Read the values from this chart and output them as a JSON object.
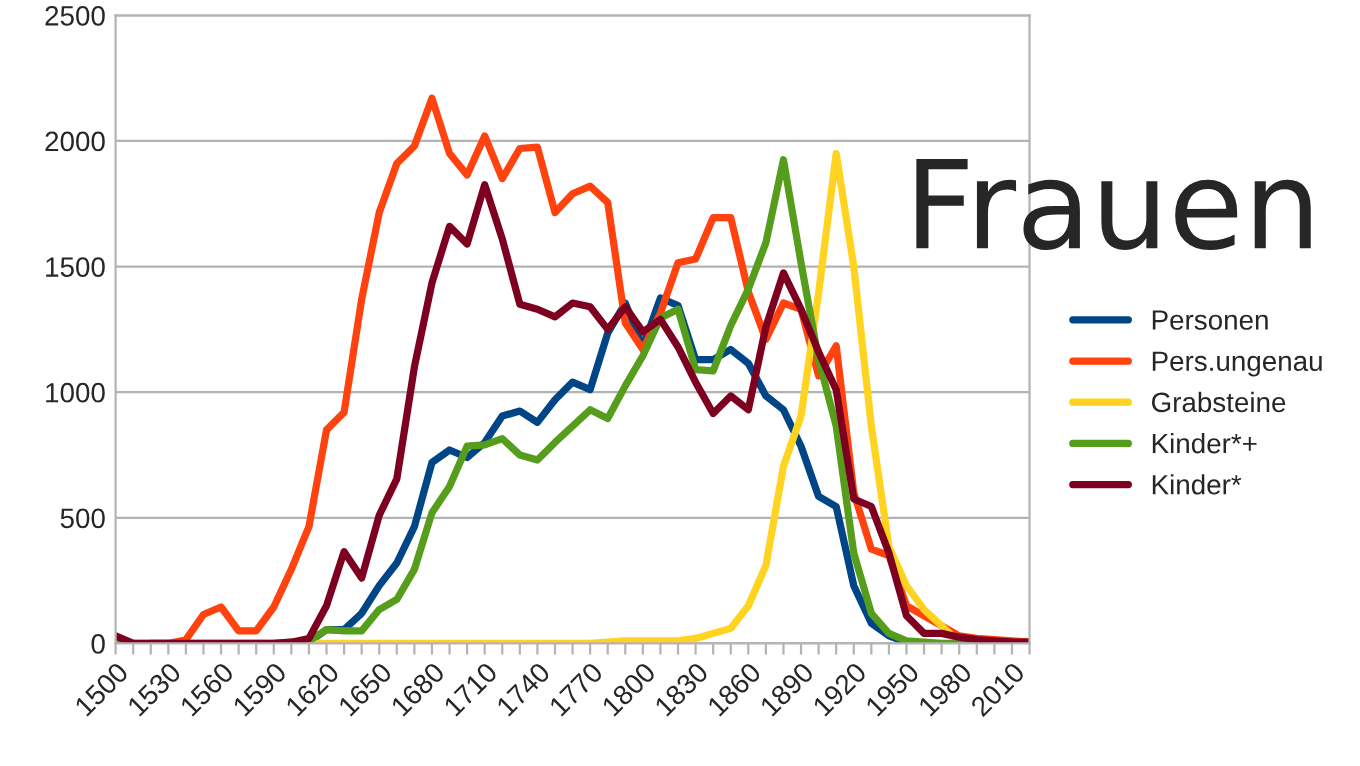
{
  "chart_data": {
    "type": "line",
    "title": "Frauen",
    "x": [
      1500,
      1510,
      1520,
      1530,
      1540,
      1550,
      1560,
      1570,
      1580,
      1590,
      1600,
      1610,
      1620,
      1630,
      1640,
      1650,
      1660,
      1670,
      1680,
      1690,
      1700,
      1710,
      1720,
      1730,
      1740,
      1750,
      1760,
      1770,
      1780,
      1790,
      1800,
      1810,
      1820,
      1830,
      1840,
      1850,
      1860,
      1870,
      1880,
      1890,
      1900,
      1910,
      1920,
      1930,
      1940,
      1950,
      1960,
      1970,
      1980,
      1990,
      2000,
      2010,
      2020
    ],
    "series": [
      {
        "name": "Personen",
        "color": "#004586",
        "values": [
          null,
          null,
          null,
          null,
          null,
          null,
          null,
          null,
          null,
          null,
          null,
          5,
          55,
          55,
          120,
          230,
          320,
          465,
          720,
          770,
          740,
          800,
          905,
          925,
          880,
          970,
          1040,
          1010,
          1235,
          1355,
          1180,
          1375,
          1345,
          1130,
          1130,
          1170,
          1115,
          985,
          930,
          785,
          585,
          545,
          230,
          80,
          30,
          5,
          0,
          null,
          null,
          null,
          null,
          null,
          null
        ]
      },
      {
        "name": "Pers.ungenau",
        "color": "#ff420e",
        "values": [
          null,
          null,
          0,
          0,
          15,
          115,
          145,
          50,
          50,
          145,
          295,
          465,
          850,
          920,
          1370,
          1715,
          1910,
          1980,
          2170,
          1950,
          1865,
          2020,
          1850,
          1970,
          1975,
          1715,
          1790,
          1820,
          1755,
          1275,
          1170,
          1315,
          1515,
          1530,
          1695,
          1695,
          1400,
          1210,
          1355,
          1330,
          1065,
          1185,
          600,
          375,
          350,
          150,
          110,
          70,
          30,
          20,
          15,
          10,
          5
        ]
      },
      {
        "name": "Grabsteine",
        "color": "#ffd320",
        "values": [
          null,
          null,
          null,
          null,
          null,
          null,
          null,
          null,
          null,
          null,
          0,
          0,
          0,
          0,
          0,
          0,
          0,
          0,
          0,
          0,
          0,
          0,
          0,
          0,
          0,
          0,
          0,
          0,
          5,
          10,
          10,
          10,
          10,
          20,
          40,
          60,
          150,
          310,
          705,
          905,
          1395,
          1950,
          1500,
          865,
          385,
          230,
          135,
          70,
          5,
          0,
          null,
          null,
          null
        ]
      },
      {
        "name": "Kinder*+",
        "color": "#579d1c",
        "values": [
          10,
          0,
          0,
          0,
          0,
          0,
          0,
          0,
          0,
          0,
          5,
          10,
          55,
          50,
          50,
          135,
          175,
          295,
          520,
          625,
          785,
          790,
          815,
          750,
          730,
          800,
          865,
          930,
          895,
          1025,
          1145,
          1295,
          1330,
          1090,
          1085,
          1265,
          1410,
          1595,
          1925,
          1515,
          1130,
          865,
          360,
          120,
          40,
          10,
          5,
          0,
          0,
          0,
          0,
          null,
          null
        ]
      },
      {
        "name": "Kinder*",
        "color": "#7e0021",
        "values": [
          30,
          0,
          0,
          0,
          0,
          0,
          0,
          0,
          0,
          0,
          5,
          20,
          150,
          365,
          260,
          510,
          655,
          1100,
          1435,
          1660,
          1590,
          1826,
          1610,
          1350,
          1330,
          1300,
          1355,
          1340,
          1250,
          1340,
          1240,
          1290,
          1180,
          1040,
          915,
          985,
          930,
          1260,
          1475,
          1330,
          1160,
          1010,
          575,
          545,
          360,
          110,
          40,
          40,
          25,
          15,
          10,
          5,
          5
        ]
      }
    ],
    "xlim": [
      1500,
      2020
    ],
    "xticks": [
      1500,
      {
        "value": 1510,
        "label": null
      },
      {
        "value": 1520,
        "label": null
      },
      1530,
      {
        "value": 1540,
        "label": null
      },
      {
        "value": 1550,
        "label": null
      },
      1560,
      {
        "value": 1570,
        "label": null
      },
      {
        "value": 1580,
        "label": null
      },
      1590,
      {
        "value": 1600,
        "label": null
      },
      {
        "value": 1610,
        "label": null
      },
      1620,
      {
        "value": 1630,
        "label": null
      },
      {
        "value": 1640,
        "label": null
      },
      1650,
      {
        "value": 1660,
        "label": null
      },
      {
        "value": 1670,
        "label": null
      },
      1680,
      {
        "value": 1690,
        "label": null
      },
      {
        "value": 1700,
        "label": null
      },
      1710,
      {
        "value": 1720,
        "label": null
      },
      {
        "value": 1730,
        "label": null
      },
      1740,
      {
        "value": 1750,
        "label": null
      },
      {
        "value": 1760,
        "label": null
      },
      1770,
      {
        "value": 1780,
        "label": null
      },
      {
        "value": 1790,
        "label": null
      },
      1800,
      {
        "value": 1810,
        "label": null
      },
      {
        "value": 1820,
        "label": null
      },
      1830,
      {
        "value": 1840,
        "label": null
      },
      {
        "value": 1850,
        "label": null
      },
      1860,
      {
        "value": 1870,
        "label": null
      },
      {
        "value": 1880,
        "label": null
      },
      1890,
      {
        "value": 1900,
        "label": null
      },
      {
        "value": 1910,
        "label": null
      },
      1920,
      {
        "value": 1930,
        "label": null
      },
      {
        "value": 1940,
        "label": null
      },
      1950,
      {
        "value": 1960,
        "label": null
      },
      {
        "value": 1970,
        "label": null
      },
      1980,
      {
        "value": 1990,
        "label": null
      },
      {
        "value": 2000,
        "label": null
      },
      2010,
      {
        "value": 2020,
        "label": null
      }
    ],
    "ylim": [
      0,
      2500
    ],
    "yticks": [
      0,
      500,
      1000,
      1500,
      2000,
      2500
    ],
    "grid": "y",
    "legend": "right",
    "line_style": "solid"
  }
}
